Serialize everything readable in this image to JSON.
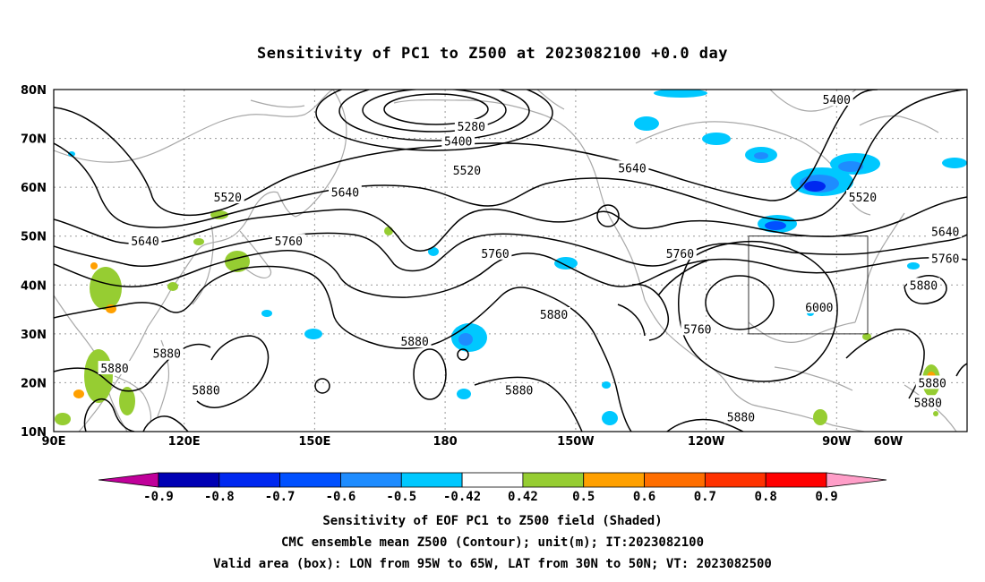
{
  "title": "Sensitivity of PC1 to Z500 at 2023082100 +0.0 day",
  "map": {
    "lon_range_deg_east": [
      90,
      300
    ],
    "lat_range_deg": [
      10,
      80
    ],
    "lat_ticks": [
      "80N",
      "70N",
      "60N",
      "50N",
      "40N",
      "30N",
      "20N",
      "10N"
    ],
    "lon_ticks": [
      "90E",
      "120E",
      "150E",
      "180",
      "150W",
      "120W",
      "90W",
      "60W"
    ],
    "grid": "dotted",
    "valid_box": {
      "lon_west": "95W",
      "lon_east": "65W",
      "lat_south": "30N",
      "lat_north": "50N"
    }
  },
  "contour_labels": [
    {
      "text": "5400",
      "lon": -90,
      "lat": 78
    },
    {
      "text": "5280",
      "lon": -174,
      "lat": 72.5
    },
    {
      "text": "5400",
      "lon": -177,
      "lat": 69.5
    },
    {
      "text": "5520",
      "lon": -175,
      "lat": 63.5
    },
    {
      "text": "5640",
      "lon": -137,
      "lat": 64
    },
    {
      "text": "5520",
      "lon": 130,
      "lat": 58
    },
    {
      "text": "5640",
      "lon": 157,
      "lat": 59
    },
    {
      "text": "5520",
      "lon": -84,
      "lat": 58
    },
    {
      "text": "5640",
      "lon": 111,
      "lat": 49
    },
    {
      "text": "5760",
      "lon": 144,
      "lat": 49
    },
    {
      "text": "5760",
      "lon": -168.5,
      "lat": 46.5
    },
    {
      "text": "5760",
      "lon": -126,
      "lat": 46.5
    },
    {
      "text": "5640",
      "lon": -65,
      "lat": 51
    },
    {
      "text": "5760",
      "lon": -65,
      "lat": 45.5
    },
    {
      "text": "5880",
      "lon": -70,
      "lat": 40
    },
    {
      "text": "6000",
      "lon": -94,
      "lat": 35.5
    },
    {
      "text": "5880",
      "lon": -155,
      "lat": 34
    },
    {
      "text": "5760",
      "lon": -122,
      "lat": 31
    },
    {
      "text": "5880",
      "lon": 173,
      "lat": 28.5
    },
    {
      "text": "5880",
      "lon": 116,
      "lat": 26
    },
    {
      "text": "5880",
      "lon": 104,
      "lat": 23
    },
    {
      "text": "5880",
      "lon": 125,
      "lat": 18.5
    },
    {
      "text": "5880",
      "lon": -163,
      "lat": 18.5
    },
    {
      "text": "5880",
      "lon": -68,
      "lat": 20
    },
    {
      "text": "5880",
      "lon": -69,
      "lat": 16
    },
    {
      "text": "5880",
      "lon": -112,
      "lat": 13
    }
  ],
  "colorbar": {
    "levels": [
      "-0.9",
      "-0.8",
      "-0.7",
      "-0.6",
      "-0.5",
      "-0.42",
      "0.42",
      "0.5",
      "0.6",
      "0.7",
      "0.8",
      "0.9"
    ],
    "colors": [
      "#c0009a",
      "#0000b4",
      "#0028f0",
      "#0050ff",
      "#1e8cff",
      "#00c8ff",
      "#ffffff",
      "#96cd32",
      "#ffa000",
      "#ff6e00",
      "#ff3200",
      "#ff0000",
      "#ff9ec8"
    ]
  },
  "footer": {
    "line1": "Sensitivity of EOF PC1 to Z500 field (Shaded)",
    "line2": "CMC ensemble mean Z500 (Contour); unit(m); IT:2023082100",
    "line3": "Valid area (box): LON from 95W to 65W, LAT from 30N to 50N; VT: 2023082500"
  }
}
